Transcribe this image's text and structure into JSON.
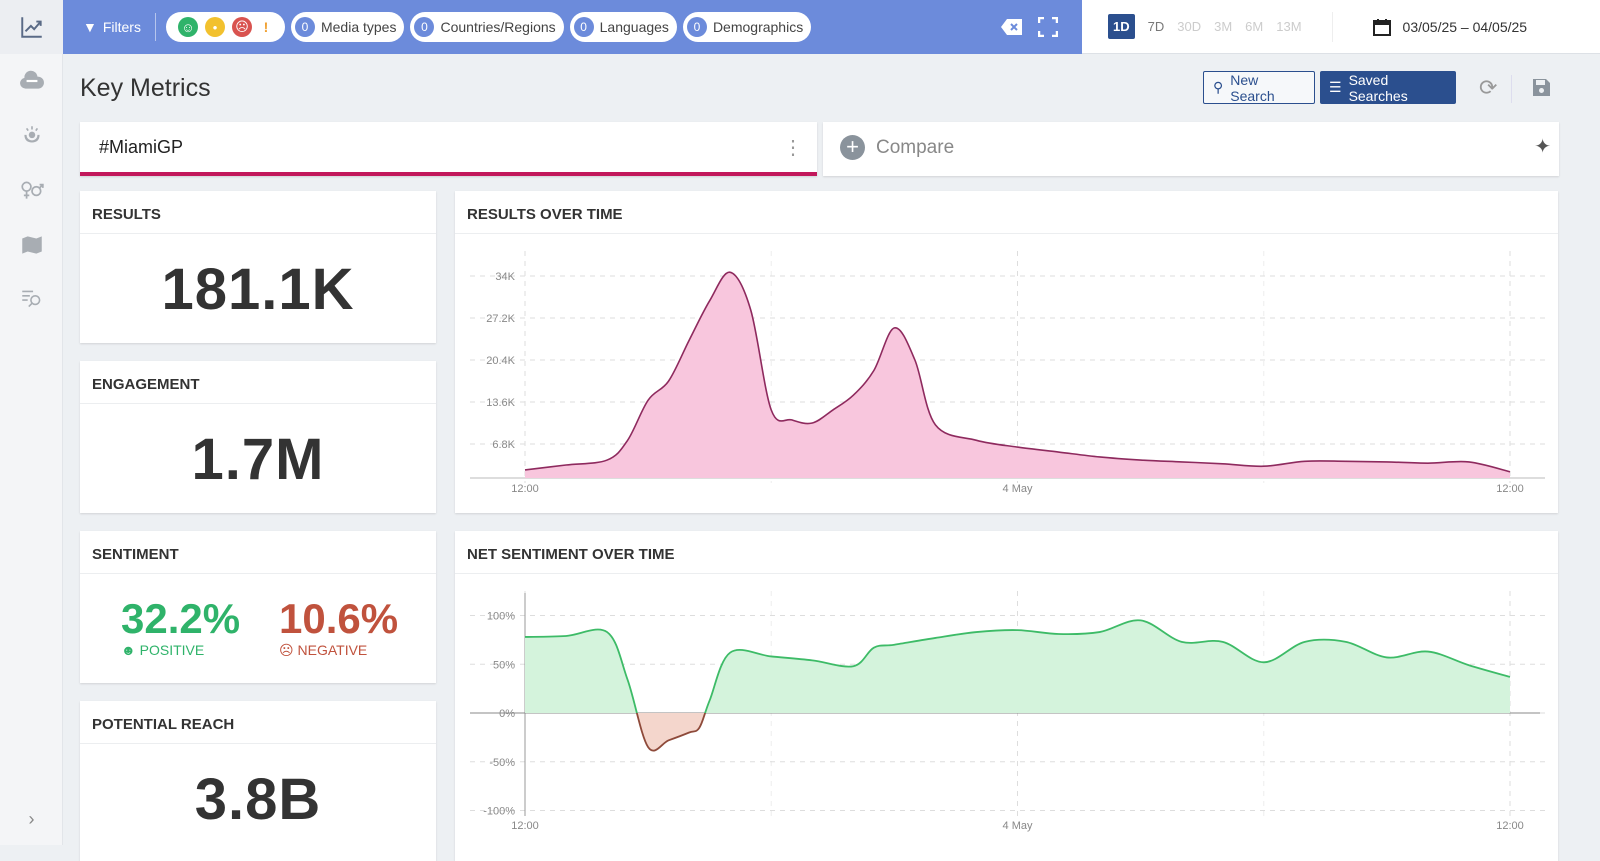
{
  "sidebar": {
    "items": [
      {
        "icon": "trend-chart-icon"
      },
      {
        "icon": "cloud-icon"
      },
      {
        "icon": "influencer-icon"
      },
      {
        "icon": "gender-icon"
      },
      {
        "icon": "map-icon"
      },
      {
        "icon": "search-list-icon"
      }
    ],
    "expand_icon": "chevron-right-icon"
  },
  "topbar": {
    "filters_label": "Filters",
    "sentiment_filters": [
      "positive",
      "neutral",
      "negative",
      "alert"
    ],
    "pills": [
      {
        "count": "0",
        "label": "Media types"
      },
      {
        "count": "0",
        "label": "Countries/Regions"
      },
      {
        "count": "0",
        "label": "Languages"
      },
      {
        "count": "0",
        "label": "Demographics"
      }
    ],
    "ranges": [
      "1D",
      "7D",
      "30D",
      "3M",
      "6M",
      "13M"
    ],
    "selected_range": "1D",
    "date_range": "03/05/25 – 04/05/25"
  },
  "header": {
    "title": "Key Metrics",
    "new_search": "New Search",
    "saved_searches": "Saved Searches"
  },
  "search": {
    "query": "#MiamiGP",
    "compare": "Compare"
  },
  "metrics": {
    "results": {
      "title": "RESULTS",
      "value": "181.1K"
    },
    "engagement": {
      "title": "ENGAGEMENT",
      "value": "1.7M"
    },
    "sentiment": {
      "title": "SENTIMENT",
      "positive": "32.2%",
      "positive_label": "POSITIVE",
      "negative": "10.6%",
      "negative_label": "NEGATIVE"
    },
    "reach": {
      "title": "POTENTIAL REACH",
      "value": "3.8B"
    }
  },
  "colors": {
    "accent": "#c2185b",
    "topbar": "#6c8bdb",
    "primary": "#2b4f8e",
    "positive": "#2fb36a",
    "negative": "#c0523d"
  },
  "chart_data": [
    {
      "type": "area",
      "title": "RESULTS OVER TIME",
      "ylim": [
        0,
        34000
      ],
      "yticks": [
        "6.8K",
        "13.6K",
        "20.4K",
        "27.2K",
        "34K"
      ],
      "xticks": [
        "12:00",
        "4 May",
        "12:00"
      ],
      "grid": true,
      "x": [
        "3 May 12:00",
        "3 May 13:00",
        "3 May 14:00",
        "3 May 14:30",
        "3 May 15:00",
        "3 May 15:30",
        "3 May 16:00",
        "3 May 16:30",
        "3 May 17:00",
        "3 May 17:30",
        "3 May 18:00",
        "3 May 18:30",
        "3 May 19:00",
        "3 May 19:30",
        "3 May 20:00",
        "3 May 20:30",
        "3 May 21:00",
        "3 May 21:30",
        "3 May 22:00",
        "3 May 23:00",
        "4 May 00:00",
        "4 May 01:00",
        "4 May 02:00",
        "4 May 03:00",
        "4 May 04:00",
        "4 May 05:00",
        "4 May 06:00",
        "4 May 07:00",
        "4 May 08:00",
        "4 May 09:00",
        "4 May 10:00",
        "4 May 11:00",
        "4 May 12:00"
      ],
      "values": [
        2600,
        3400,
        4200,
        7400,
        13900,
        17000,
        23600,
        30000,
        34600,
        28500,
        12300,
        10700,
        10200,
        12300,
        14700,
        18700,
        25600,
        20400,
        9900,
        7400,
        6300,
        5500,
        4700,
        4200,
        3900,
        3600,
        3200,
        4000,
        4000,
        3900,
        3700,
        3900,
        2300
      ]
    },
    {
      "type": "area",
      "title": "NET SENTIMENT OVER TIME",
      "ylim": [
        -100,
        100
      ],
      "yticks": [
        "100%",
        "50%",
        "0%",
        "-50%",
        "-100%"
      ],
      "xticks": [
        "12:00",
        "4 May",
        "12:00"
      ],
      "grid": true,
      "x": [
        "3 May 12:00",
        "3 May 13:00",
        "3 May 14:00",
        "3 May 14:30",
        "3 May 15:00",
        "3 May 15:30",
        "3 May 16:00",
        "3 May 16:15",
        "3 May 16:30",
        "3 May 17:00",
        "3 May 18:00",
        "3 May 19:00",
        "3 May 20:00",
        "3 May 20:30",
        "3 May 21:00",
        "3 May 22:00",
        "3 May 23:00",
        "4 May 00:00",
        "4 May 01:00",
        "4 May 02:00",
        "4 May 03:00",
        "4 May 04:00",
        "4 May 05:00",
        "4 May 06:00",
        "4 May 07:00",
        "4 May 08:00",
        "4 May 09:00",
        "4 May 10:00",
        "4 May 11:00",
        "4 May 12:00"
      ],
      "values": [
        78,
        79,
        83,
        34,
        -35,
        -28,
        -20,
        -15,
        13,
        62,
        58,
        54,
        48,
        67,
        70,
        77,
        83,
        85,
        81,
        83,
        95,
        73,
        73,
        52,
        73,
        73,
        57,
        63,
        49,
        37
      ]
    }
  ]
}
